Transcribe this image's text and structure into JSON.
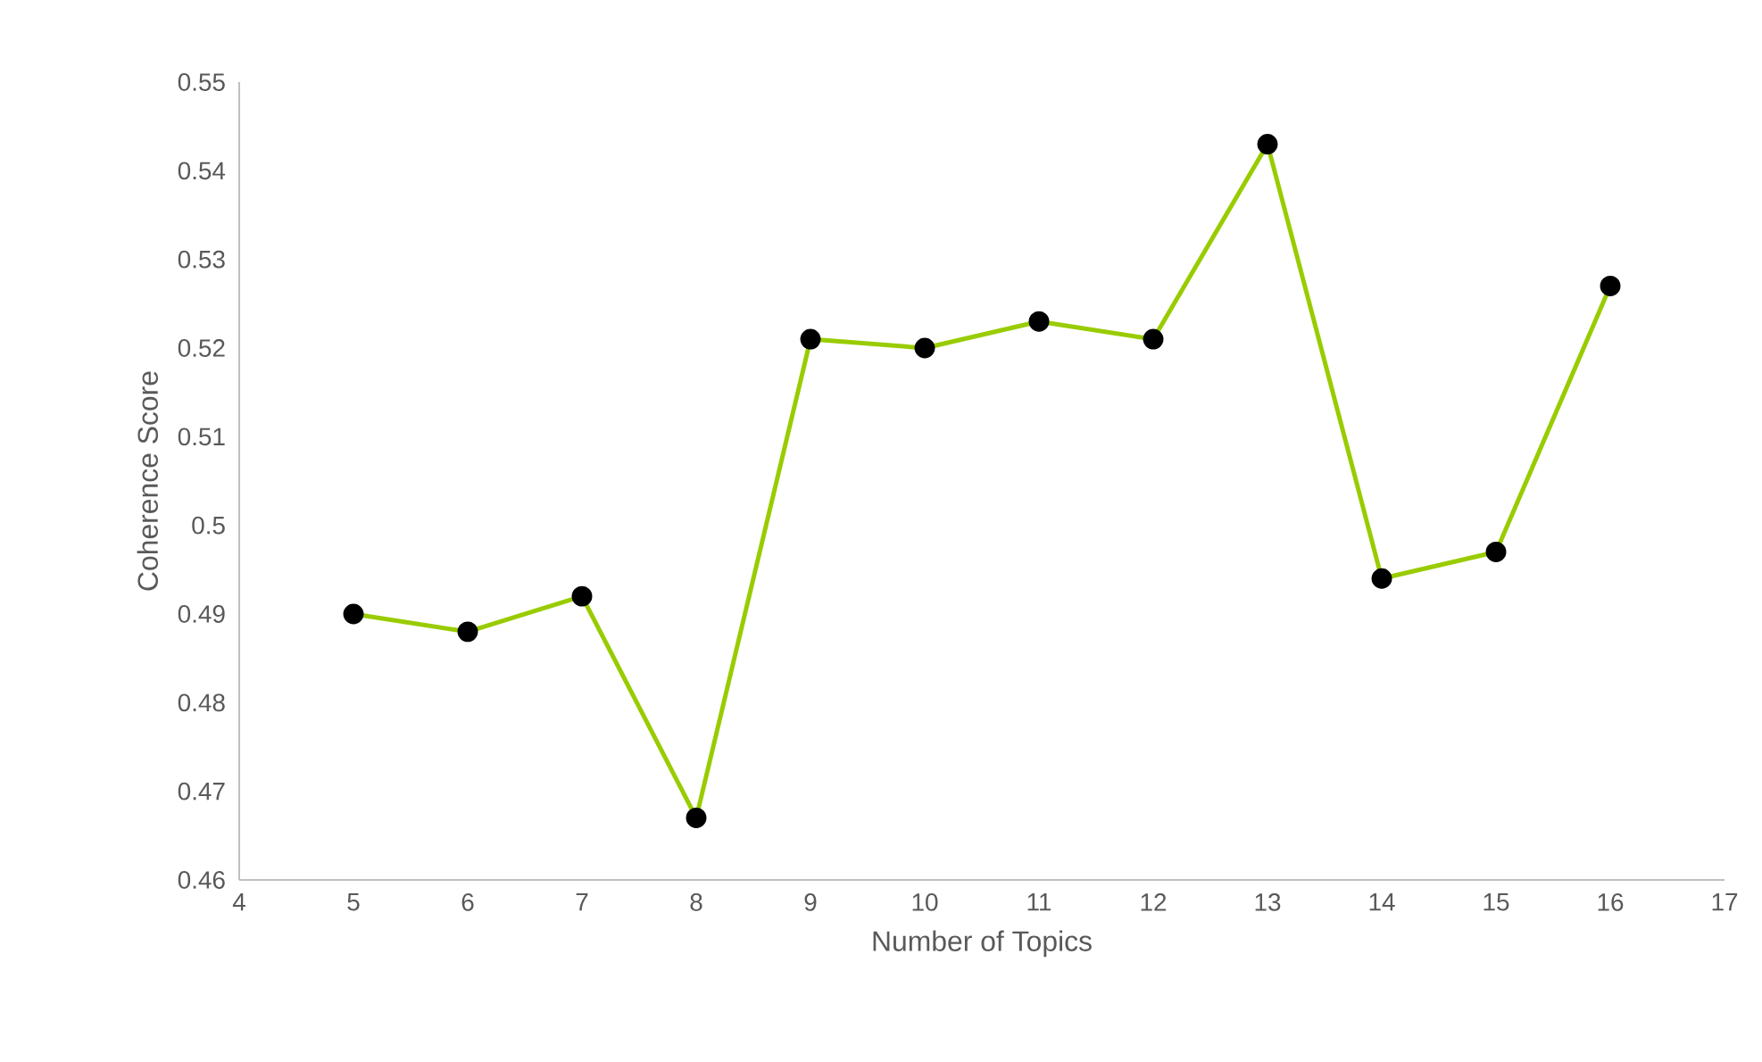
{
  "chart_data": {
    "type": "line",
    "xlabel": "Number of Topics",
    "ylabel": "Coherence Score",
    "x": [
      5,
      6,
      7,
      8,
      9,
      10,
      11,
      12,
      13,
      14,
      15,
      16
    ],
    "series": [
      {
        "color": "#99cc00",
        "values": [
          0.49,
          0.488,
          0.492,
          0.467,
          0.521,
          0.52,
          0.523,
          0.521,
          0.543,
          0.494,
          0.497,
          0.527
        ]
      }
    ],
    "xlim": [
      4,
      17
    ],
    "xticks": [
      4,
      5,
      6,
      7,
      8,
      9,
      10,
      11,
      12,
      13,
      14,
      15,
      16,
      17
    ],
    "ylim": [
      0.46,
      0.55
    ],
    "yticks": [
      {
        "value": 0.46,
        "label": "0.46"
      },
      {
        "value": 0.47,
        "label": "0.47"
      },
      {
        "value": 0.48,
        "label": "0.48"
      },
      {
        "value": 0.49,
        "label": "0.49"
      },
      {
        "value": 0.5,
        "label": "0.5"
      },
      {
        "value": 0.51,
        "label": "0.51"
      },
      {
        "value": 0.52,
        "label": "0.52"
      },
      {
        "value": 0.53,
        "label": "0.53"
      },
      {
        "value": 0.54,
        "label": "0.54"
      },
      {
        "value": 0.55,
        "label": "0.55"
      }
    ],
    "grid": false,
    "marker": "circle",
    "line_style": "solid"
  }
}
